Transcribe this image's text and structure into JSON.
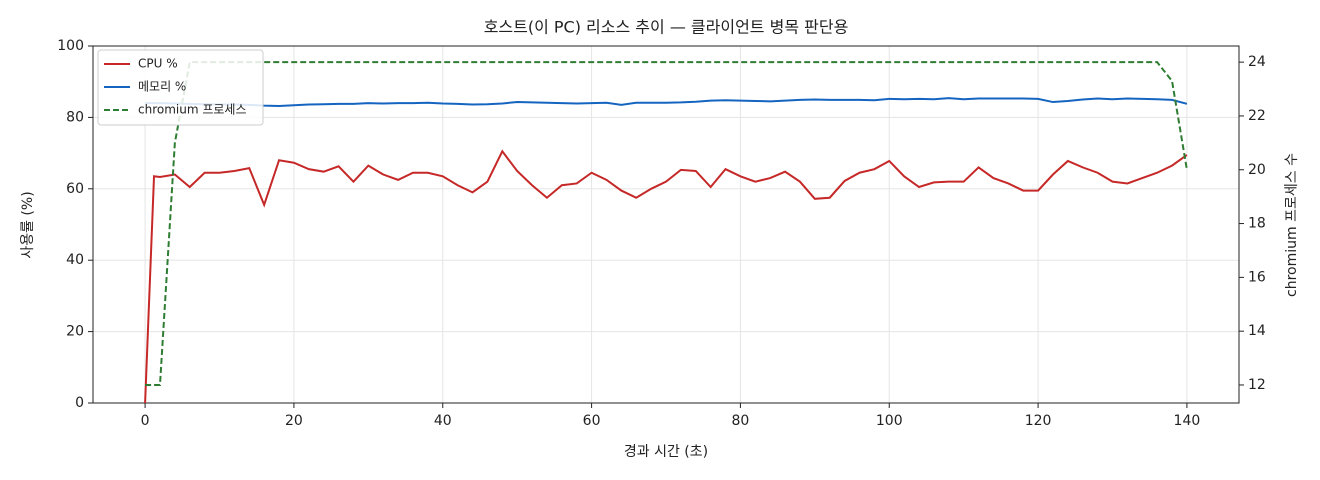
{
  "chart_data": {
    "type": "line",
    "title": "호스트(이 PC) 리소스 추이 — 클라이언트 병목 판단용",
    "xlabel": "경과 시간 (초)",
    "ylabel": "사용률 (%)",
    "y2label": "chromium 프로세스 수",
    "x": [
      0,
      1.2,
      2,
      4,
      6,
      8,
      10,
      12,
      14,
      16,
      18,
      20,
      22,
      24,
      26,
      28,
      30,
      32,
      34,
      36,
      38,
      40,
      42,
      44,
      46,
      48,
      50,
      52,
      54,
      56,
      58,
      60,
      62,
      64,
      66,
      68,
      70,
      72,
      74,
      76,
      78,
      80,
      82,
      84,
      86,
      88,
      90,
      92,
      94,
      96,
      98,
      100,
      102,
      104,
      106,
      108,
      110,
      112,
      114,
      116,
      118,
      120,
      122,
      124,
      126,
      128,
      130,
      132,
      134,
      136,
      138,
      140
    ],
    "series": [
      {
        "name": "CPU %",
        "color": "#c62828",
        "linestyle": "solid",
        "values": [
          0,
          63.5,
          63.3,
          64,
          60.5,
          64.5,
          64.5,
          65,
          65.8,
          55.5,
          68,
          67.3,
          65.5,
          64.8,
          66.3,
          62,
          66.5,
          64,
          62.5,
          64.5,
          64.5,
          63.5,
          61,
          59,
          62,
          70.5,
          65,
          61,
          57.5,
          61,
          61.5,
          64.5,
          62.5,
          59.5,
          57.5,
          60,
          62,
          65.3,
          65,
          60.5,
          65.5,
          63.5,
          62,
          63,
          64.8,
          62,
          57.2,
          57.5,
          62.2,
          64.5,
          65.5,
          67.8,
          63.5,
          60.5,
          61.8,
          62,
          62,
          66,
          63,
          61.5,
          59.5,
          59.5,
          64,
          67.8,
          66,
          64.5,
          62,
          61.5,
          63,
          64.5,
          66.5,
          69.5
        ]
      },
      {
        "name": "메모리 %",
        "color": "#1565c0",
        "linestyle": "solid",
        "values": [
          84,
          84,
          84,
          83.9,
          83.8,
          83.7,
          83.6,
          83.6,
          83.5,
          83.3,
          83.2,
          83.4,
          83.6,
          83.7,
          83.8,
          83.8,
          84,
          83.9,
          84,
          84,
          84.1,
          83.9,
          83.8,
          83.6,
          83.7,
          83.9,
          84.3,
          84.2,
          84.1,
          84,
          83.9,
          84,
          84.1,
          83.5,
          84.1,
          84.1,
          84.1,
          84.2,
          84.4,
          84.7,
          84.8,
          84.7,
          84.6,
          84.5,
          84.7,
          84.9,
          85,
          84.9,
          84.9,
          84.9,
          84.8,
          85.2,
          85.1,
          85.2,
          85.1,
          85.4,
          85.1,
          85.3,
          85.3,
          85.3,
          85.3,
          85.2,
          84.3,
          84.6,
          85,
          85.3,
          85.1,
          85.3,
          85.2,
          85.1,
          84.9,
          83.8
        ]
      },
      {
        "name": "chromium 프로세스",
        "color": "#2e7d32",
        "linestyle": "dashed",
        "axis": "y2",
        "values": [
          12,
          12,
          12,
          21,
          24,
          24,
          24,
          24,
          24,
          24,
          24,
          24,
          24,
          24,
          24,
          24,
          24,
          24,
          24,
          24,
          24,
          24,
          24,
          24,
          24,
          24,
          24,
          24,
          24,
          24,
          24,
          24,
          24,
          24,
          24,
          24,
          24,
          24,
          24,
          24,
          24,
          24,
          24,
          24,
          24,
          24,
          24,
          24,
          24,
          24,
          24,
          24,
          24,
          24,
          24,
          24,
          24,
          24,
          24,
          24,
          24,
          24,
          24,
          24,
          24,
          24,
          24,
          24,
          24,
          24,
          23.3,
          20
        ]
      }
    ],
    "xlim": [
      -7,
      147
    ],
    "xticks": [
      0,
      20,
      40,
      60,
      80,
      100,
      120,
      140
    ],
    "ylim": [
      0,
      100
    ],
    "yticks": [
      0,
      20,
      40,
      60,
      80,
      100
    ],
    "y2lim": [
      11.33,
      24.6
    ],
    "y2ticks": [
      12,
      14,
      16,
      18,
      20,
      22,
      24
    ],
    "grid": true,
    "legend": "upper-left"
  }
}
